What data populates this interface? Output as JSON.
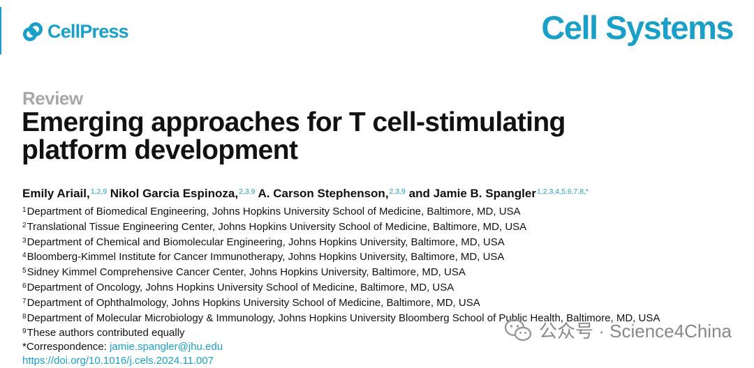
{
  "header": {
    "publisher": "CellPress",
    "journal": "Cell Systems",
    "colors": {
      "brand": "#1aa0c8",
      "article_type": "#a8a8a8"
    }
  },
  "article": {
    "type": "Review",
    "title_lines": [
      "Emerging approaches for T cell-stimulating",
      "platform development"
    ]
  },
  "authors": [
    {
      "name": "Emily Ariail,",
      "sup": "1,2,9"
    },
    {
      "name": "Nikol Garcia Espinoza,",
      "sup": "2,3,9"
    },
    {
      "name": "A. Carson Stephenson,",
      "sup": "2,3,9"
    },
    {
      "name": "and Jamie B. Spangler",
      "sup": "1,2,3,4,5,6,7,8,*"
    }
  ],
  "affiliations": [
    {
      "num": "1",
      "text": "Department of Biomedical Engineering, Johns Hopkins University School of Medicine, Baltimore, MD, USA"
    },
    {
      "num": "2",
      "text": "Translational Tissue Engineering Center, Johns Hopkins University School of Medicine, Baltimore, MD, USA"
    },
    {
      "num": "3",
      "text": "Department of Chemical and Biomolecular Engineering, Johns Hopkins University, Baltimore, MD, USA"
    },
    {
      "num": "4",
      "text": "Bloomberg-Kimmel Institute for Cancer Immunotherapy, Johns Hopkins University, Baltimore, MD, USA"
    },
    {
      "num": "5",
      "text": "Sidney Kimmel Comprehensive Cancer Center, Johns Hopkins University, Baltimore, MD, USA"
    },
    {
      "num": "6",
      "text": "Department of Oncology, Johns Hopkins University School of Medicine, Baltimore, MD, USA"
    },
    {
      "num": "7",
      "text": "Department of Ophthalmology, Johns Hopkins University School of Medicine, Baltimore, MD, USA"
    },
    {
      "num": "8",
      "text": "Department of Molecular Microbiology & Immunology, Johns Hopkins University Bloomberg School of Public Health, Baltimore, MD, USA"
    }
  ],
  "notes": {
    "equal_num": "9",
    "equal_text": "These authors contributed equally",
    "correspondence_label": "*Correspondence: ",
    "correspondence_email": "jamie.spangler@jhu.edu",
    "doi": "https://doi.org/10.1016/j.cels.2024.11.007"
  },
  "watermark": {
    "separator": "公众号 · ",
    "account": "Science4China",
    "icon": "wechat-icon"
  }
}
